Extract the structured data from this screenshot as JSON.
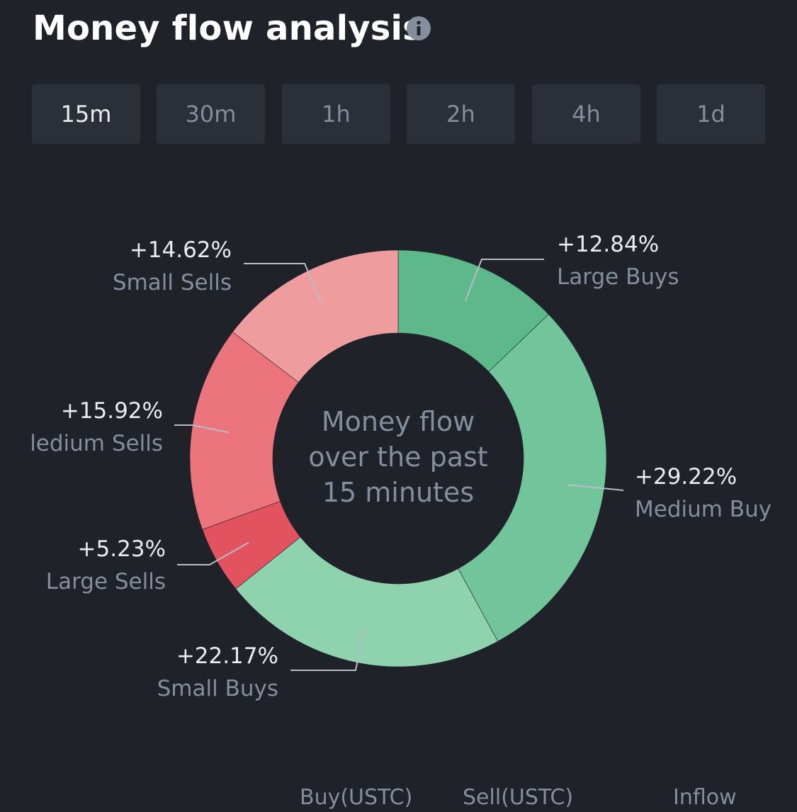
{
  "header": {
    "title": "Money flow analysis"
  },
  "tabs": [
    {
      "label": "15m",
      "active": true
    },
    {
      "label": "30m",
      "active": false
    },
    {
      "label": "1h",
      "active": false
    },
    {
      "label": "2h",
      "active": false
    },
    {
      "label": "4h",
      "active": false
    },
    {
      "label": "1d",
      "active": false
    }
  ],
  "donut": {
    "center_lines": [
      "Money flow",
      "over the past",
      "15 minutes"
    ]
  },
  "chart_data": {
    "type": "pie",
    "categories": [
      "Large Buys",
      "Medium Buy",
      "Small Buys",
      "Large Sells",
      "Medium Sells",
      "Small Sells"
    ],
    "values": [
      12.84,
      29.22,
      22.17,
      5.23,
      15.92,
      14.62
    ],
    "labels": [
      "+12.84%",
      "+29.22%",
      "+22.17%",
      "+5.23%",
      "+15.92%",
      "+14.62%"
    ],
    "colors": [
      "#5db98a",
      "#72c59b",
      "#8fd3ae",
      "#e2525f",
      "#ec757d",
      "#ef9c9f"
    ]
  },
  "slice_labels": {
    "large_buys": {
      "pct": "+12.84%",
      "name": "Large Buys"
    },
    "medium_buys": {
      "pct": "+29.22%",
      "name": "Medium Buy"
    },
    "small_buys": {
      "pct": "+22.17%",
      "name": "Small Buys"
    },
    "large_sells": {
      "pct": "+5.23%",
      "name": "Large Sells"
    },
    "medium_sells": {
      "pct": "+15.92%",
      "name": "ledium Sells"
    },
    "small_sells": {
      "pct": "+14.62%",
      "name": "Small Sells"
    }
  },
  "table": {
    "headers": [
      "Buy(USTC)",
      "Sell(USTC)",
      "Inflow"
    ]
  },
  "colors": {
    "background": "#1f2229",
    "tab_background": "#2a2f38",
    "text_primary": "#eaecef",
    "text_secondary": "#848e9c"
  }
}
